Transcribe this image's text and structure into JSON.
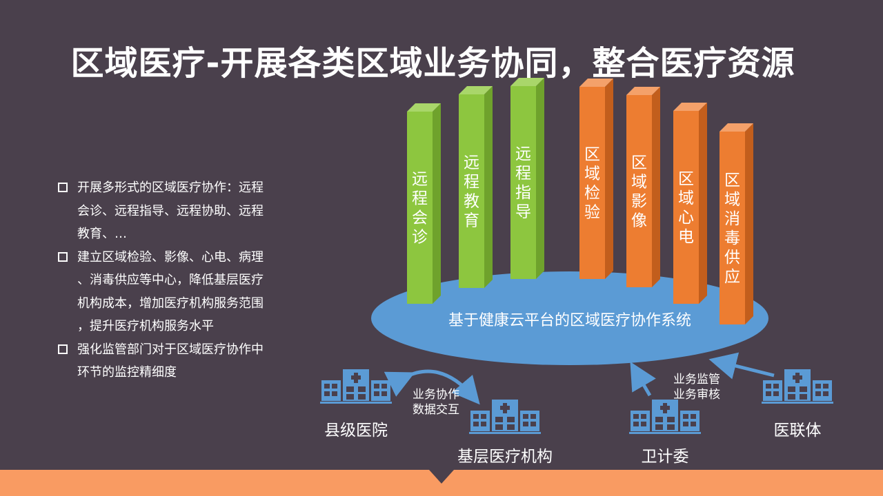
{
  "title": "区域医疗-开展各类区域业务协同，整合医疗资源",
  "bullets": [
    [
      "开展多形式的区域医疗协作：远程",
      "会诊、远程指导、远程协助、远程",
      "教育、…"
    ],
    [
      "建立区域检验、影像、心电、病理",
      "、消毒供应等中心，降低基层医疗",
      "机构成本，增加医疗机构服务范围",
      "，提升医疗机构服务水平"
    ],
    [
      "强化监管部门对于区域医疗协作中",
      "环节的监控精细度"
    ]
  ],
  "platform_label": "基于健康云平台的区域医疗协作系统",
  "pillars": [
    {
      "label": "远程会诊",
      "color": "green"
    },
    {
      "label": "远程教育",
      "color": "green"
    },
    {
      "label": "远程指导",
      "color": "green"
    },
    {
      "label": "区域检验",
      "color": "orange"
    },
    {
      "label": "区域影像",
      "color": "orange"
    },
    {
      "label": "区域心电",
      "color": "orange"
    },
    {
      "label": "区域消毒供应",
      "color": "orange"
    }
  ],
  "nodes": {
    "county": "县级医院",
    "primary": "基层医疗机构",
    "health_commission": "卫计委",
    "alliance": "医联体"
  },
  "annotations": {
    "collab": [
      "业务协作",
      "数据交互"
    ],
    "supervise": [
      "业务监管",
      "业务审核"
    ]
  },
  "colors": {
    "background": "#4a404c",
    "green": "#8dc63f",
    "orange": "#ed7d31",
    "platform": "#5b9bd5",
    "building": "#5b9bd5",
    "bottom_bar": "#f99b62"
  }
}
